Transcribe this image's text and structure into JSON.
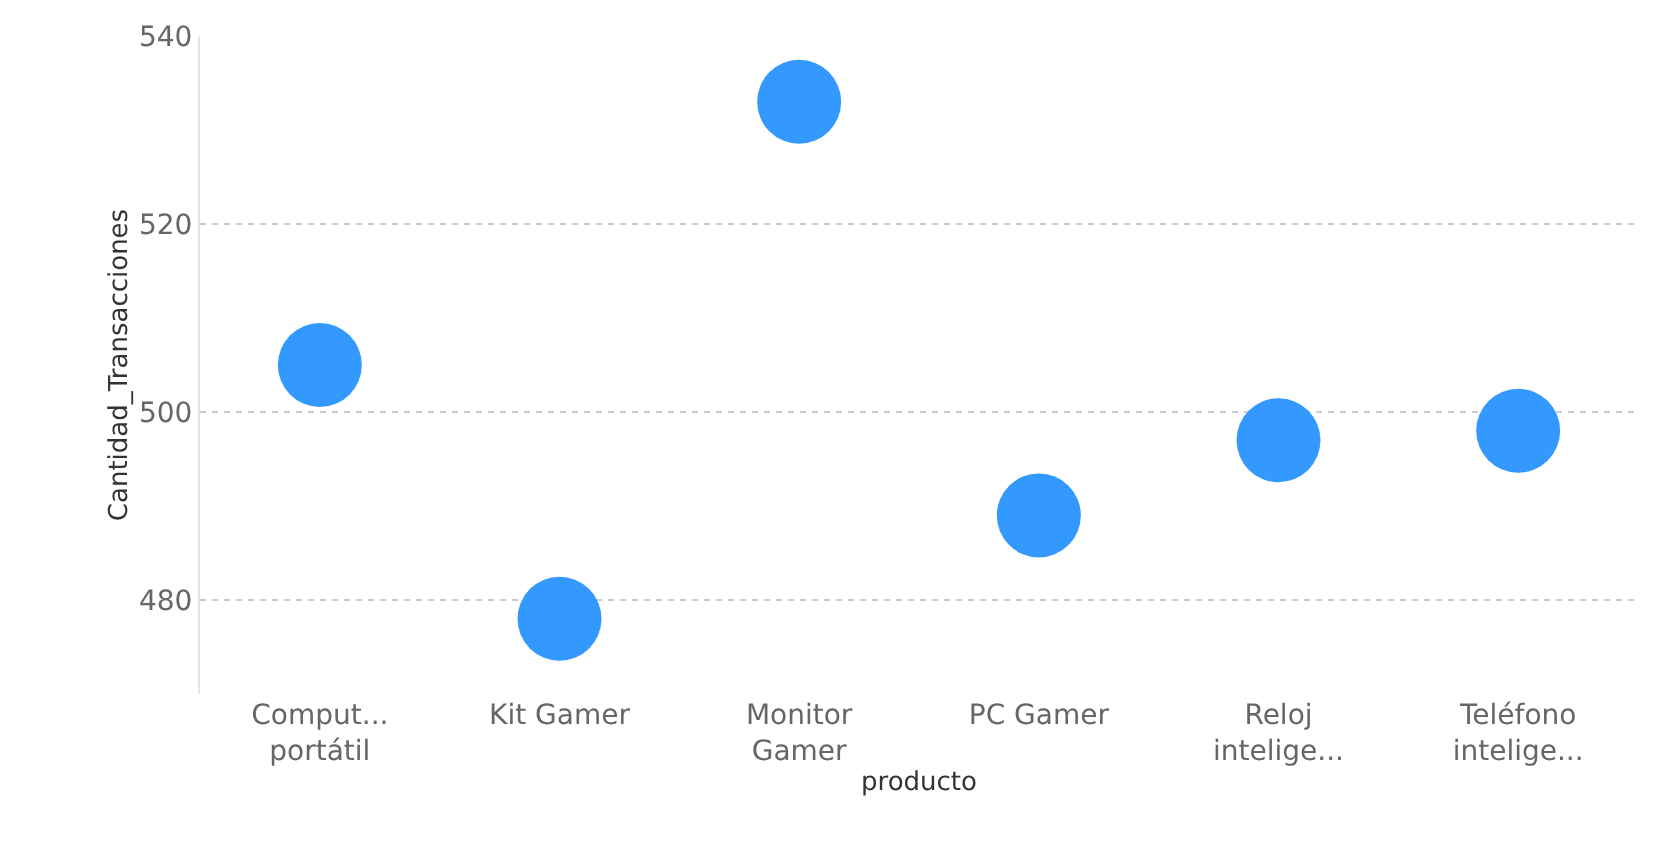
{
  "chart_data": {
    "type": "scatter",
    "xlabel": "producto",
    "ylabel": "Cantidad_Transacciones",
    "categories": [
      "Comput...\nportátil",
      "Kit Gamer",
      "Monitor\nGamer",
      "PC Gamer",
      "Reloj\nintelige...",
      "Teléfono\nintelige..."
    ],
    "values": [
      505,
      478,
      533,
      489,
      497,
      498
    ],
    "color": "#3399ff",
    "ylim": [
      470,
      540
    ],
    "yticks": [
      480,
      500,
      520,
      540
    ],
    "grid": "y",
    "marker": "circle"
  }
}
